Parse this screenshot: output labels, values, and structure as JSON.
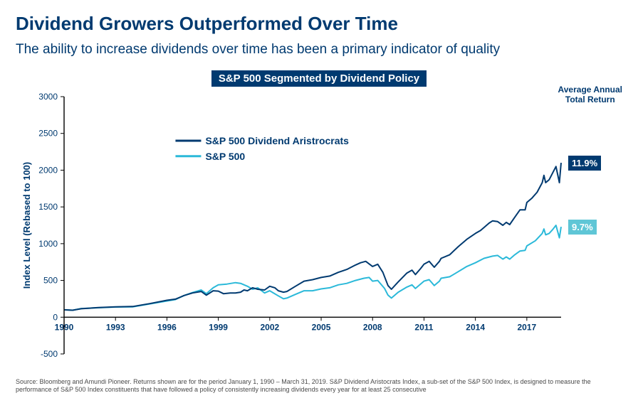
{
  "title": "Dividend Growers Outperformed Over Time",
  "subtitle": "The ability to increase dividends over time has been a primary indicator of quality",
  "banner": "S&P 500 Segmented by Dividend Policy",
  "avg_annual_title": "Average Annual\nTotal Return",
  "chart": {
    "type": "line",
    "y_label": "Index Level (Rebased to 100)",
    "y_min": -500,
    "y_max": 3000,
    "y_step": 500,
    "x_ticks": [
      1990,
      1993,
      1996,
      1999,
      2002,
      2005,
      2008,
      2011,
      2014,
      2017
    ],
    "x_min": 1990,
    "x_max": 2019,
    "line_width": 2,
    "background_color": "#ffffff",
    "axis_color": "#000000",
    "series": [
      {
        "name": "S&P 500 Dividend Aristrocrats",
        "color": "#003a70",
        "end_label": "11.9%",
        "end_label_bg": "#003a70",
        "points": [
          [
            1990,
            100
          ],
          [
            1990.5,
            95
          ],
          [
            1991,
            115
          ],
          [
            1992,
            130
          ],
          [
            1993,
            140
          ],
          [
            1994,
            145
          ],
          [
            1995,
            185
          ],
          [
            1996,
            230
          ],
          [
            1996.5,
            245
          ],
          [
            1997,
            295
          ],
          [
            1997.5,
            330
          ],
          [
            1998,
            350
          ],
          [
            1998.3,
            300
          ],
          [
            1998.7,
            360
          ],
          [
            1999,
            355
          ],
          [
            1999.3,
            320
          ],
          [
            1999.7,
            330
          ],
          [
            2000,
            330
          ],
          [
            2000.3,
            340
          ],
          [
            2000.5,
            370
          ],
          [
            2000.7,
            360
          ],
          [
            2001,
            400
          ],
          [
            2001.3,
            380
          ],
          [
            2001.7,
            370
          ],
          [
            2002,
            420
          ],
          [
            2002.3,
            400
          ],
          [
            2002.5,
            360
          ],
          [
            2002.8,
            340
          ],
          [
            2003,
            350
          ],
          [
            2003.5,
            420
          ],
          [
            2004,
            490
          ],
          [
            2004.5,
            510
          ],
          [
            2005,
            540
          ],
          [
            2005.5,
            560
          ],
          [
            2006,
            610
          ],
          [
            2006.5,
            650
          ],
          [
            2007,
            710
          ],
          [
            2007.3,
            740
          ],
          [
            2007.6,
            760
          ],
          [
            2008,
            690
          ],
          [
            2008.3,
            720
          ],
          [
            2008.6,
            610
          ],
          [
            2008.9,
            430
          ],
          [
            2009.1,
            380
          ],
          [
            2009.5,
            480
          ],
          [
            2010,
            600
          ],
          [
            2010.3,
            640
          ],
          [
            2010.5,
            580
          ],
          [
            2010.8,
            660
          ],
          [
            2011,
            720
          ],
          [
            2011.3,
            760
          ],
          [
            2011.6,
            680
          ],
          [
            2011.9,
            760
          ],
          [
            2012,
            800
          ],
          [
            2012.5,
            850
          ],
          [
            2013,
            960
          ],
          [
            2013.5,
            1060
          ],
          [
            2014,
            1140
          ],
          [
            2014.3,
            1180
          ],
          [
            2014.5,
            1220
          ],
          [
            2014.8,
            1280
          ],
          [
            2015,
            1310
          ],
          [
            2015.3,
            1300
          ],
          [
            2015.6,
            1250
          ],
          [
            2015.8,
            1290
          ],
          [
            2016,
            1260
          ],
          [
            2016.3,
            1360
          ],
          [
            2016.6,
            1460
          ],
          [
            2016.9,
            1460
          ],
          [
            2017,
            1560
          ],
          [
            2017.3,
            1620
          ],
          [
            2017.6,
            1700
          ],
          [
            2017.9,
            1830
          ],
          [
            2018,
            1930
          ],
          [
            2018.1,
            1830
          ],
          [
            2018.3,
            1870
          ],
          [
            2018.5,
            1960
          ],
          [
            2018.7,
            2050
          ],
          [
            2018.9,
            1830
          ],
          [
            2019,
            2100
          ]
        ]
      },
      {
        "name": "S&P 500",
        "color": "#2bb9d9",
        "end_label": "9.7%",
        "end_label_bg": "#5fc6d6",
        "points": [
          [
            1990,
            100
          ],
          [
            1990.5,
            95
          ],
          [
            1991,
            118
          ],
          [
            1992,
            128
          ],
          [
            1993,
            138
          ],
          [
            1994,
            140
          ],
          [
            1995,
            180
          ],
          [
            1996,
            220
          ],
          [
            1996.5,
            240
          ],
          [
            1997,
            295
          ],
          [
            1997.5,
            335
          ],
          [
            1998,
            370
          ],
          [
            1998.3,
            320
          ],
          [
            1998.7,
            400
          ],
          [
            1999,
            440
          ],
          [
            1999.5,
            450
          ],
          [
            2000,
            470
          ],
          [
            2000.3,
            460
          ],
          [
            2000.7,
            420
          ],
          [
            2001,
            380
          ],
          [
            2001.3,
            400
          ],
          [
            2001.7,
            330
          ],
          [
            2002,
            360
          ],
          [
            2002.5,
            290
          ],
          [
            2002.8,
            250
          ],
          [
            2003,
            260
          ],
          [
            2003.5,
            310
          ],
          [
            2004,
            360
          ],
          [
            2004.5,
            360
          ],
          [
            2005,
            385
          ],
          [
            2005.5,
            400
          ],
          [
            2006,
            440
          ],
          [
            2006.5,
            460
          ],
          [
            2007,
            500
          ],
          [
            2007.5,
            530
          ],
          [
            2007.8,
            540
          ],
          [
            2008,
            490
          ],
          [
            2008.3,
            500
          ],
          [
            2008.7,
            390
          ],
          [
            2008.9,
            300
          ],
          [
            2009.1,
            260
          ],
          [
            2009.5,
            340
          ],
          [
            2010,
            410
          ],
          [
            2010.3,
            440
          ],
          [
            2010.5,
            390
          ],
          [
            2010.8,
            450
          ],
          [
            2011,
            490
          ],
          [
            2011.3,
            510
          ],
          [
            2011.6,
            430
          ],
          [
            2011.9,
            490
          ],
          [
            2012,
            530
          ],
          [
            2012.5,
            550
          ],
          [
            2013,
            620
          ],
          [
            2013.5,
            690
          ],
          [
            2014,
            740
          ],
          [
            2014.5,
            800
          ],
          [
            2015,
            830
          ],
          [
            2015.3,
            840
          ],
          [
            2015.6,
            790
          ],
          [
            2015.8,
            820
          ],
          [
            2016,
            790
          ],
          [
            2016.3,
            850
          ],
          [
            2016.6,
            900
          ],
          [
            2016.9,
            910
          ],
          [
            2017,
            970
          ],
          [
            2017.5,
            1040
          ],
          [
            2017.9,
            1140
          ],
          [
            2018,
            1200
          ],
          [
            2018.1,
            1120
          ],
          [
            2018.3,
            1140
          ],
          [
            2018.5,
            1190
          ],
          [
            2018.7,
            1250
          ],
          [
            2018.9,
            1080
          ],
          [
            2019,
            1230
          ]
        ]
      }
    ]
  },
  "footer": "Source: Bloomberg and Amundi Pioneer. Returns shown are for the period January 1, 1990 – March 31, 2019. S&P Dividend Aristocrats Index, a sub-set of the S&P 500 Index, is designed to measure the performance of S&P 500 Index constituents that have followed a policy of consistently increasing dividends every year for at least 25 consecutive"
}
